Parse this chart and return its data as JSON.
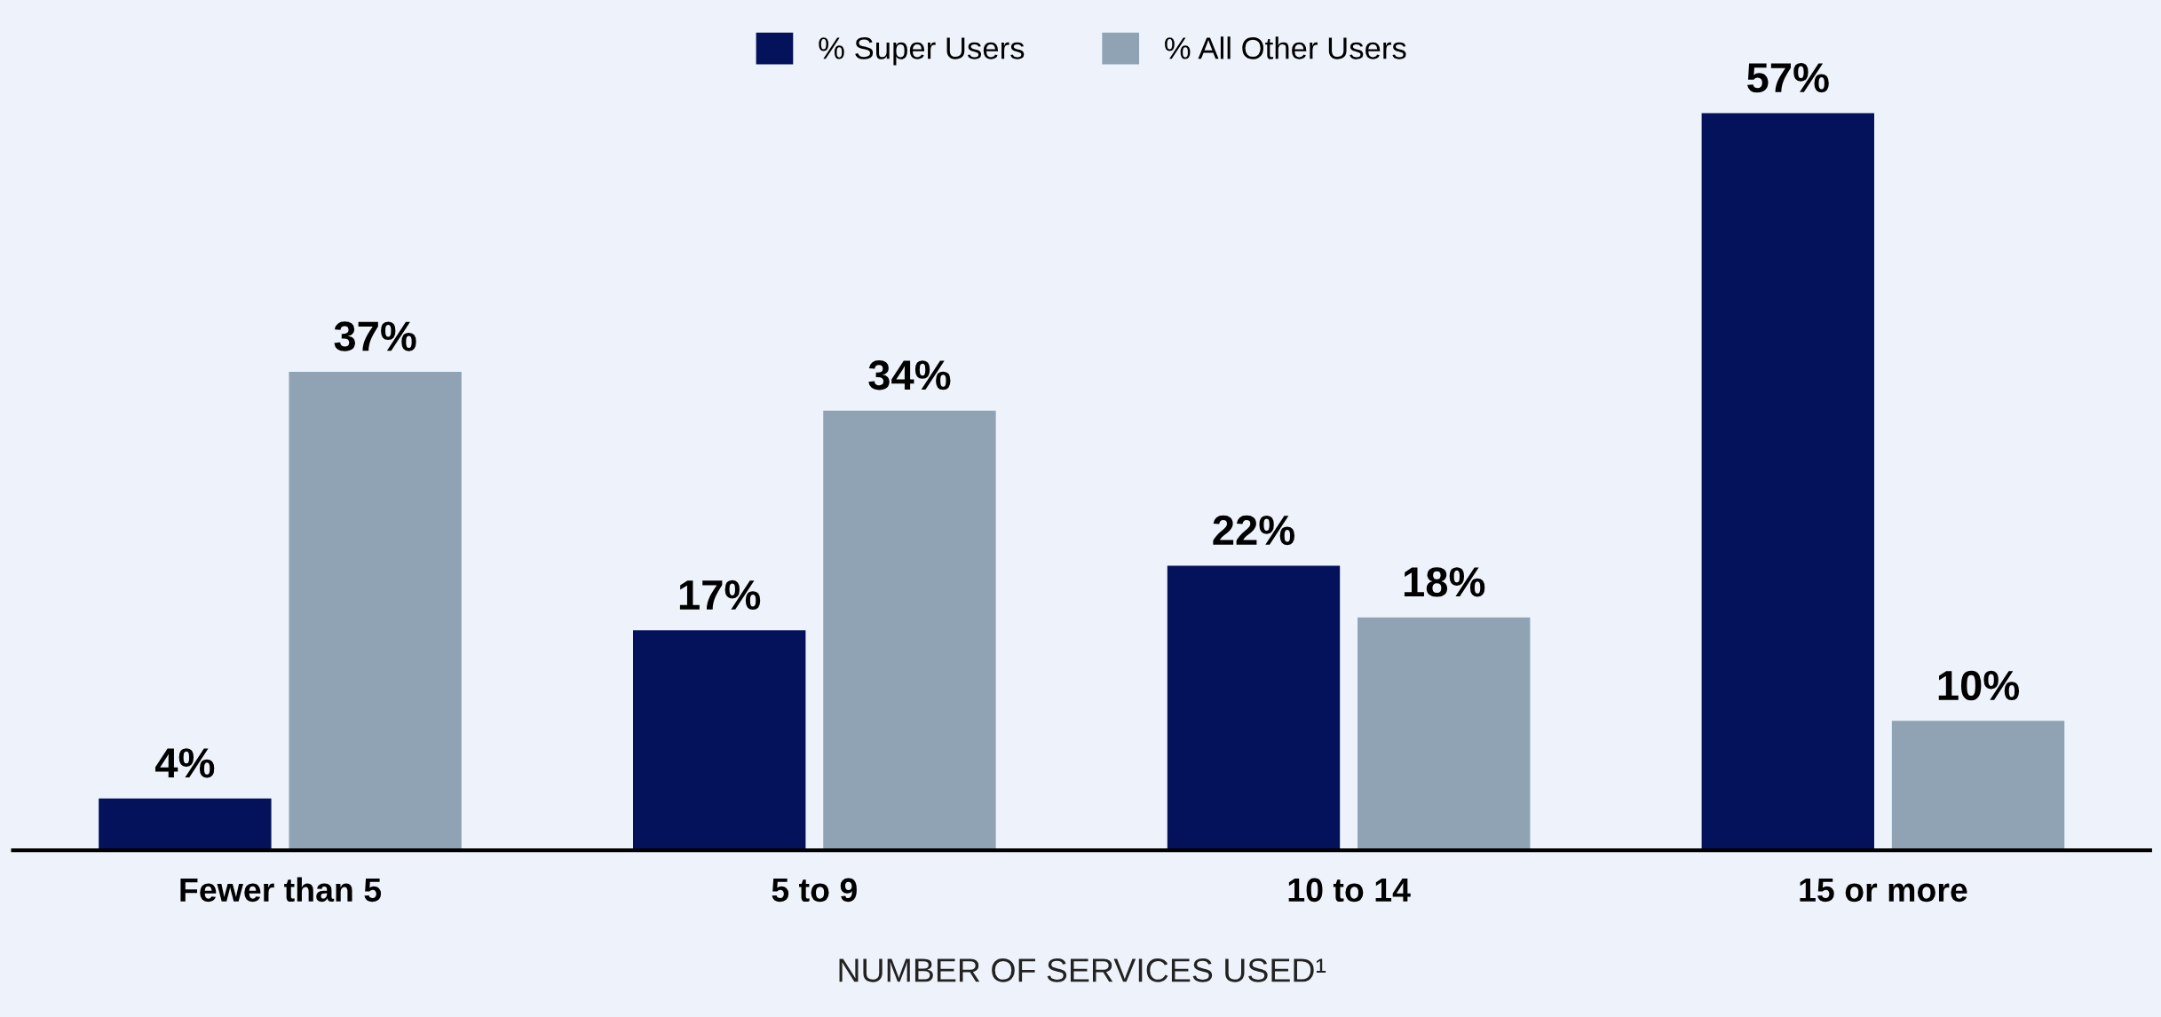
{
  "chart_data": {
    "type": "bar",
    "categories": [
      "Fewer than 5",
      "5 to 9",
      "10 to 14",
      "15 or more"
    ],
    "series": [
      {
        "name": "% Super Users",
        "color": "#03125a",
        "values": [
          4,
          17,
          22,
          57
        ],
        "value_labels": [
          "4%",
          "17%",
          "22%",
          "57%"
        ]
      },
      {
        "name": "% All Other Users",
        "color": "#8fa3b5",
        "values": [
          37,
          34,
          18,
          10
        ],
        "value_labels": [
          "37%",
          "34%",
          "18%",
          "10%"
        ]
      }
    ],
    "xlabel": "NUMBER OF SERVICES USED¹",
    "legend": "top",
    "grid": false,
    "tick_labels": "x"
  }
}
